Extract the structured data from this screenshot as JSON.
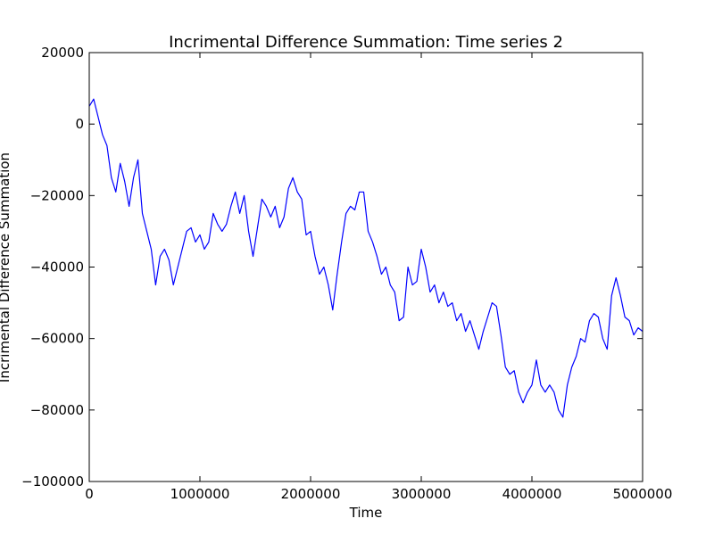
{
  "chart_data": {
    "type": "line",
    "title": "Incrimental Difference Summation: Time series 2",
    "xlabel": "Time",
    "ylabel": "Incrimental Difference Summation",
    "x": [
      0,
      40000,
      80000,
      120000,
      160000,
      200000,
      240000,
      280000,
      320000,
      360000,
      400000,
      440000,
      480000,
      520000,
      560000,
      600000,
      640000,
      680000,
      720000,
      760000,
      800000,
      840000,
      880000,
      920000,
      960000,
      1000000,
      1040000,
      1080000,
      1120000,
      1160000,
      1200000,
      1240000,
      1280000,
      1320000,
      1360000,
      1400000,
      1440000,
      1480000,
      1520000,
      1560000,
      1600000,
      1640000,
      1680000,
      1720000,
      1760000,
      1800000,
      1840000,
      1880000,
      1920000,
      1960000,
      2000000,
      2040000,
      2080000,
      2120000,
      2160000,
      2200000,
      2240000,
      2280000,
      2320000,
      2360000,
      2400000,
      2440000,
      2480000,
      2520000,
      2560000,
      2600000,
      2640000,
      2680000,
      2720000,
      2760000,
      2800000,
      2840000,
      2880000,
      2920000,
      2960000,
      3000000,
      3040000,
      3080000,
      3120000,
      3160000,
      3200000,
      3240000,
      3280000,
      3320000,
      3360000,
      3400000,
      3440000,
      3480000,
      3520000,
      3560000,
      3600000,
      3640000,
      3680000,
      3720000,
      3760000,
      3800000,
      3840000,
      3880000,
      3920000,
      3960000,
      4000000,
      4040000,
      4080000,
      4120000,
      4160000,
      4200000,
      4240000,
      4280000,
      4320000,
      4360000,
      4400000,
      4440000,
      4480000,
      4520000,
      4560000,
      4600000,
      4640000,
      4680000,
      4720000,
      4760000,
      4800000,
      4840000,
      4880000,
      4920000,
      4960000,
      5000000
    ],
    "series": [
      {
        "color": "#0000ff",
        "values": [
          5000,
          7000,
          2000,
          -3000,
          -6000,
          -15000,
          -19000,
          -11000,
          -16000,
          -23000,
          -15000,
          -10000,
          -25000,
          -30000,
          -35000,
          -45000,
          -37000,
          -35000,
          -38000,
          -45000,
          -40000,
          -35000,
          -30000,
          -29000,
          -33000,
          -31000,
          -35000,
          -33000,
          -25000,
          -28000,
          -30000,
          -28000,
          -23000,
          -19000,
          -25000,
          -20000,
          -30000,
          -37000,
          -29000,
          -21000,
          -23000,
          -26000,
          -23000,
          -29000,
          -26000,
          -18000,
          -15000,
          -19000,
          -21000,
          -31000,
          -30000,
          -37000,
          -42000,
          -40000,
          -45000,
          -52000,
          -42000,
          -33000,
          -25000,
          -23000,
          -24000,
          -19000,
          -19000,
          -30000,
          -33000,
          -37000,
          -42000,
          -40000,
          -45000,
          -47000,
          -55000,
          -54000,
          -40000,
          -45000,
          -44000,
          -35000,
          -40000,
          -47000,
          -45000,
          -50000,
          -47000,
          -51000,
          -50000,
          -55000,
          -53000,
          -58000,
          -55000,
          -59000,
          -63000,
          -58000,
          -54000,
          -50000,
          -51000,
          -59000,
          -68000,
          -70000,
          -69000,
          -75000,
          -78000,
          -75000,
          -73000,
          -66000,
          -73000,
          -75000,
          -73000,
          -75000,
          -80000,
          -82000,
          -73000,
          -68000,
          -65000,
          -60000,
          -61000,
          -55000,
          -53000,
          -54000,
          -60000,
          -63000,
          -48000,
          -43000,
          -48000,
          -54000,
          -55000,
          -59000,
          -57000,
          -58000
        ]
      }
    ],
    "xlim": [
      0,
      5000000
    ],
    "ylim": [
      -100000,
      20000
    ],
    "xticks": [
      0,
      1000000,
      2000000,
      3000000,
      4000000,
      5000000
    ],
    "yticks": [
      {
        "value": -100000,
        "label": "−100000"
      },
      {
        "value": -80000,
        "label": "−80000"
      },
      {
        "value": -60000,
        "label": "−60000"
      },
      {
        "value": -40000,
        "label": "−40000"
      },
      {
        "value": -20000,
        "label": "−20000"
      },
      0,
      20000
    ],
    "grid": false
  }
}
